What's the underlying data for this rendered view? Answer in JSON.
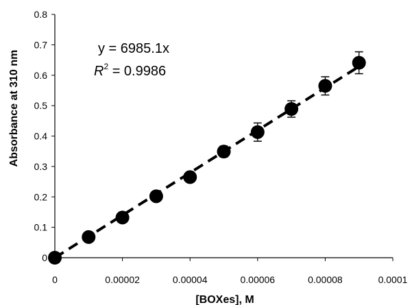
{
  "chart_data": {
    "type": "scatter",
    "title": "",
    "xlabel": "[BOXes], M",
    "ylabel": "Absorbance at 310 nm",
    "xlim": [
      0,
      0.0001
    ],
    "ylim": [
      0,
      0.8
    ],
    "x_ticks": [
      "0",
      "0.00002",
      "0.00004",
      "0.00006",
      "0.00008",
      "0.0001"
    ],
    "y_ticks": [
      "0",
      "0.1",
      "0.2",
      "0.3",
      "0.4",
      "0.5",
      "0.6",
      "0.7",
      "0.8"
    ],
    "grid": false,
    "legend": "none",
    "annotation": {
      "equation": "y = 6985.1x",
      "r2_prefix": "R",
      "r2_exponent": "2",
      "r2_suffix": " = 0.9986"
    },
    "series": [
      {
        "x": [
          0,
          1e-05,
          2e-05,
          3e-05,
          4e-05,
          5e-05,
          6e-05,
          7e-05,
          8e-05,
          9e-05
        ],
        "y": [
          0,
          0.068,
          0.132,
          0.202,
          0.265,
          0.349,
          0.413,
          0.489,
          0.565,
          0.641
        ],
        "error": [
          0,
          0,
          0,
          0,
          0,
          0.018,
          0.03,
          0.027,
          0.03,
          0.036
        ]
      }
    ],
    "trendline": {
      "type": "linear",
      "slope": 6985.1,
      "intercept": 0,
      "style": "dashed"
    },
    "colors": {
      "marker": "#000000",
      "line": "#000000",
      "axis": "#000000"
    }
  }
}
